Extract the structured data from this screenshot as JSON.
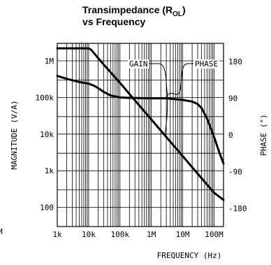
{
  "chart_data": {
    "type": "line",
    "title": "Transimpedance (R",
    "title_subscript": "OL",
    "title_close": ")",
    "title_line2": "vs Frequency",
    "xlabel": "FREQUENCY (Hz)",
    "ylabel_left": "MAGNITUDE (V/A)",
    "ylabel_right": "PHASE (°)",
    "x_scale": "log",
    "xlim": [
      1000,
      200000000
    ],
    "ylim_left": [
      30,
      3000000
    ],
    "ylim_right": [
      -225,
      225
    ],
    "x_ticks": [
      {
        "value": 1000,
        "label": "1k"
      },
      {
        "value": 10000,
        "label": "10k"
      },
      {
        "value": 100000,
        "label": "100k"
      },
      {
        "value": 1000000,
        "label": "1M"
      },
      {
        "value": 10000000,
        "label": "10M"
      },
      {
        "value": 100000000,
        "label": "100M"
      }
    ],
    "y_left_ticks": [
      {
        "value": 1000000,
        "label": "1M"
      },
      {
        "value": 100000,
        "label": "100k"
      },
      {
        "value": 10000,
        "label": "10k"
      },
      {
        "value": 1000,
        "label": "1k"
      },
      {
        "value": 100,
        "label": "100"
      }
    ],
    "y_right_ticks": [
      {
        "value": 180,
        "label": "180"
      },
      {
        "value": 90,
        "label": "90"
      },
      {
        "value": 0,
        "label": "0"
      },
      {
        "value": -90,
        "label": "-90"
      },
      {
        "value": -180,
        "label": "-180"
      }
    ],
    "edge_text": "M",
    "grid": true,
    "series": [
      {
        "name": "GAIN",
        "axis": "left",
        "x": [
          1000,
          3000,
          7000,
          10000,
          12000,
          15000,
          30000,
          100000,
          300000,
          1000000,
          3000000,
          10000000,
          30000000,
          100000000,
          200000000
        ],
        "values": [
          2200000,
          2200000,
          2200000,
          2200000,
          2000000,
          1600000,
          800000,
          250000,
          83000,
          25000,
          8300,
          2500,
          830,
          250,
          160
        ]
      },
      {
        "name": "PHASE",
        "axis": "right",
        "x": [
          1000,
          2000,
          5000,
          10000,
          15000,
          20000,
          30000,
          50000,
          100000,
          200000,
          1000000,
          3000000,
          10000000,
          20000000,
          30000000,
          40000000,
          60000000,
          100000000,
          150000000,
          200000000
        ],
        "values": [
          145,
          138,
          130,
          126,
          121,
          115,
          106,
          97,
          92,
          91,
          90,
          90,
          86,
          82,
          76,
          66,
          40,
          -5,
          -45,
          -70
        ]
      }
    ],
    "annotations": [
      {
        "text": "GAIN",
        "series": "GAIN",
        "anchor_x": 3000000
      },
      {
        "text": "PHASE",
        "series": "PHASE",
        "anchor_x": 3000000
      }
    ]
  }
}
